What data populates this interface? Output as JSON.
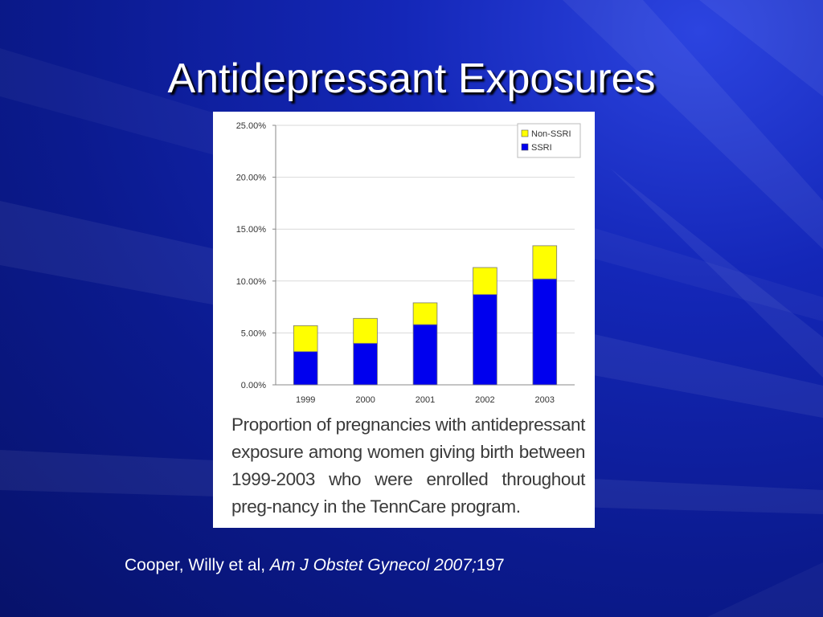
{
  "slide": {
    "title": "Antidepressant Exposures",
    "caption": "Proportion of pregnancies with antidepressant exposure among women giving birth between 1999-2003 who were enrolled throughout preg-nancy in the TennCare program.",
    "citation_authors": "Cooper, Willy et al, ",
    "citation_journal": "Am J Obstet Gynecol 2007;",
    "citation_volume": "197"
  },
  "colors": {
    "background": "#0b1a8e",
    "ssri": "#0000ee",
    "non_ssri": "#ffff00"
  },
  "chart_data": {
    "type": "bar",
    "stacked": true,
    "categories": [
      "1999",
      "2000",
      "2001",
      "2002",
      "2003"
    ],
    "series": [
      {
        "name": "SSRI",
        "color": "#0000ee",
        "values": [
          3.2,
          4.0,
          5.8,
          8.7,
          10.2
        ]
      },
      {
        "name": "Non-SSRI",
        "color": "#ffff00",
        "values": [
          2.5,
          2.4,
          2.1,
          2.6,
          3.2
        ]
      }
    ],
    "ylim": [
      0,
      25
    ],
    "yticks": [
      0,
      5,
      10,
      15,
      20,
      25
    ],
    "ytick_labels": [
      "0.00%",
      "5.00%",
      "10.00%",
      "15.00%",
      "20.00%",
      "25.00%"
    ],
    "legend": [
      "Non-SSRI",
      "SSRI"
    ],
    "legend_position": "top-right",
    "grid": true
  }
}
